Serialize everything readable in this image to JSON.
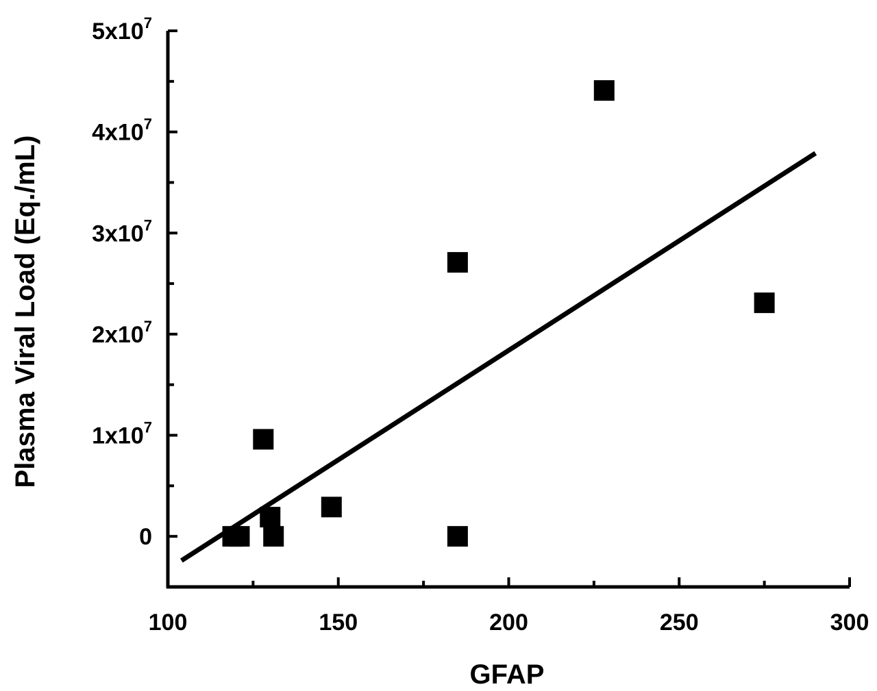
{
  "chart_data": {
    "type": "scatter",
    "xlabel": "GFAP",
    "ylabel": "Plasma Viral Load (Eq./mL)",
    "xlim": [
      100,
      300
    ],
    "ylim": [
      -5000000,
      50000000
    ],
    "x_ticks": [
      100,
      150,
      200,
      250,
      300
    ],
    "x_tick_labels": [
      "100",
      "150",
      "200",
      "250",
      "300"
    ],
    "y_ticks": [
      0,
      10000000,
      20000000,
      30000000,
      40000000,
      50000000
    ],
    "y_tick_labels": [
      {
        "base": "0",
        "exp": ""
      },
      {
        "base": "1x10",
        "exp": "7"
      },
      {
        "base": "2x10",
        "exp": "7"
      },
      {
        "base": "3x10",
        "exp": "7"
      },
      {
        "base": "4x10",
        "exp": "7"
      },
      {
        "base": "5x10",
        "exp": "7"
      }
    ],
    "points": [
      {
        "x": 119,
        "y": 0
      },
      {
        "x": 121,
        "y": 0
      },
      {
        "x": 128,
        "y": 9600000
      },
      {
        "x": 130,
        "y": 1900000
      },
      {
        "x": 131,
        "y": 0
      },
      {
        "x": 148,
        "y": 2900000
      },
      {
        "x": 185,
        "y": 27100000
      },
      {
        "x": 185,
        "y": 0
      },
      {
        "x": 228,
        "y": 44100000
      },
      {
        "x": 275,
        "y": 23100000
      }
    ],
    "fit_line": {
      "x": [
        104,
        290
      ],
      "y": [
        -2400000,
        37900000
      ]
    },
    "grid": false,
    "legend": "none"
  }
}
